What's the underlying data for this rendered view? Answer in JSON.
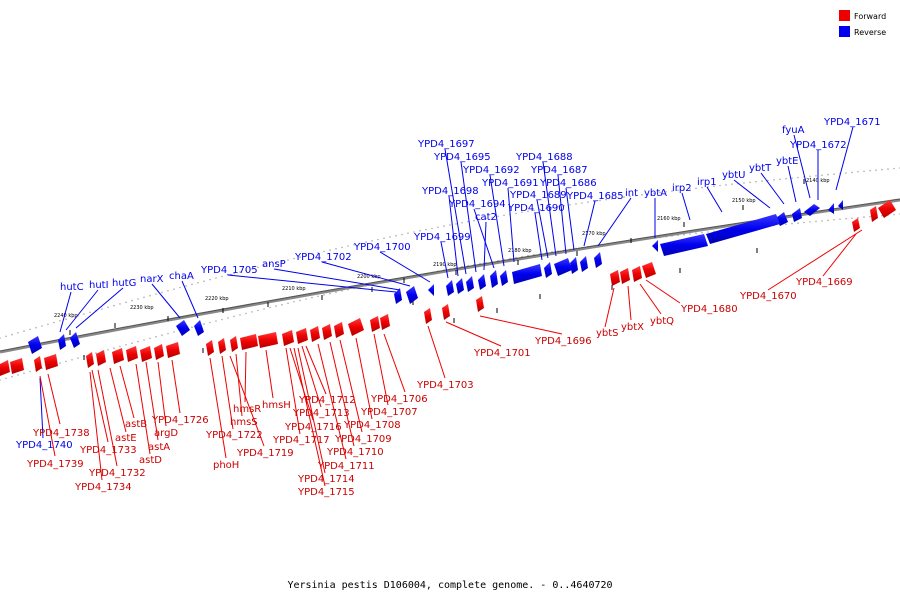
{
  "legend": {
    "items": [
      {
        "label": "Forward",
        "color": "#ee0000"
      },
      {
        "label": "Reverse",
        "color": "#0000ee"
      }
    ]
  },
  "caption": "Yersinia pestis D106004, complete genome. - 0..4640720",
  "scale_labels": [
    "2140 kbp",
    "2150 kbp",
    "2160 kbp",
    "2170 kbp",
    "2180 kbp",
    "2190 kbp",
    "2200 kbp",
    "2210 kbp",
    "2220 kbp",
    "2230 kbp",
    "2240 kbp"
  ],
  "reverse_labels": [
    "YPD4_1671",
    "fyuA",
    "YPD4_1672",
    "ybtE",
    "ybtT",
    "ybtU",
    "irp1",
    "irp2",
    "ybtA",
    "int",
    "YPD4_1685",
    "YPD4_1686",
    "YPD4_1687",
    "YPD4_1688",
    "YPD4_1689",
    "YPD4_1690",
    "YPD4_1691",
    "YPD4_1692",
    "YPD4_1694",
    "cat2",
    "YPD4_1695",
    "YPD4_1697",
    "YPD4_1698",
    "YPD4_1699",
    "YPD4_1700",
    "YPD4_1702",
    "ansP",
    "YPD4_1705",
    "chaA",
    "narX",
    "hutG",
    "hutI",
    "hutC",
    "YPD4_1740"
  ],
  "forward_labels": [
    "YPD4_1669",
    "YPD4_1670",
    "YPD4_1680",
    "ybtQ",
    "ybtX",
    "ybtS",
    "YPD4_1696",
    "YPD4_1701",
    "YPD4_1703",
    "YPD4_1706",
    "YPD4_1707",
    "YPD4_1708",
    "YPD4_1709",
    "YPD4_1710",
    "YPD4_1711",
    "YPD4_1712",
    "YPD4_1713",
    "YPD4_1714",
    "YPD4_1715",
    "YPD4_1716",
    "YPD4_1717",
    "hmsH",
    "hmsR",
    "hmsS",
    "YPD4_1719",
    "YPD4_1722",
    "phoH",
    "YPD4_1726",
    "argD",
    "astA",
    "astD",
    "astB",
    "astE",
    "YPD4_1732",
    "YPD4_1733",
    "YPD4_1734",
    "YPD4_1738",
    "YPD4_1739"
  ]
}
